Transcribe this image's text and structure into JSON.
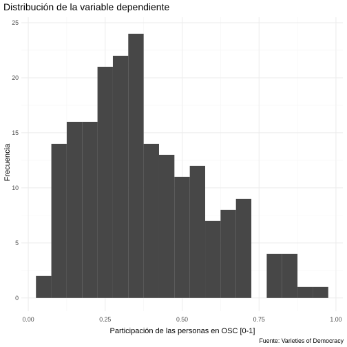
{
  "chart_data": {
    "type": "bar",
    "title": "Distribución de la variable dependiente",
    "xlabel": "Participación de las personas en OSC [0-1]",
    "ylabel": "Frecuencia",
    "caption": "Fuente: Varieties of Democracy",
    "bin_width": 0.05,
    "bin_starts": [
      0.025,
      0.075,
      0.125,
      0.175,
      0.225,
      0.275,
      0.325,
      0.375,
      0.425,
      0.475,
      0.525,
      0.575,
      0.625,
      0.675,
      0.725,
      0.775,
      0.825,
      0.875,
      0.925
    ],
    "values": [
      2,
      14,
      16,
      16,
      21,
      22,
      24,
      14,
      13,
      11,
      12,
      7,
      8,
      9,
      0,
      4,
      4,
      1,
      1
    ],
    "xlim": [
      -0.0225,
      1.0225
    ],
    "ylim": [
      -1.2,
      25.5
    ],
    "x_ticks": [
      0.0,
      0.25,
      0.5,
      0.75,
      1.0
    ],
    "x_tick_labels": [
      "0.00",
      "0.25",
      "0.50",
      "0.75",
      "1.00"
    ],
    "y_ticks": [
      0,
      5,
      10,
      15,
      20,
      25
    ],
    "y_tick_labels": [
      "0",
      "5",
      "10",
      "15",
      "20",
      "25"
    ],
    "grid": true,
    "bar_color": "#474747",
    "background": "#ffffff",
    "grid_color": "#ebebeb"
  }
}
